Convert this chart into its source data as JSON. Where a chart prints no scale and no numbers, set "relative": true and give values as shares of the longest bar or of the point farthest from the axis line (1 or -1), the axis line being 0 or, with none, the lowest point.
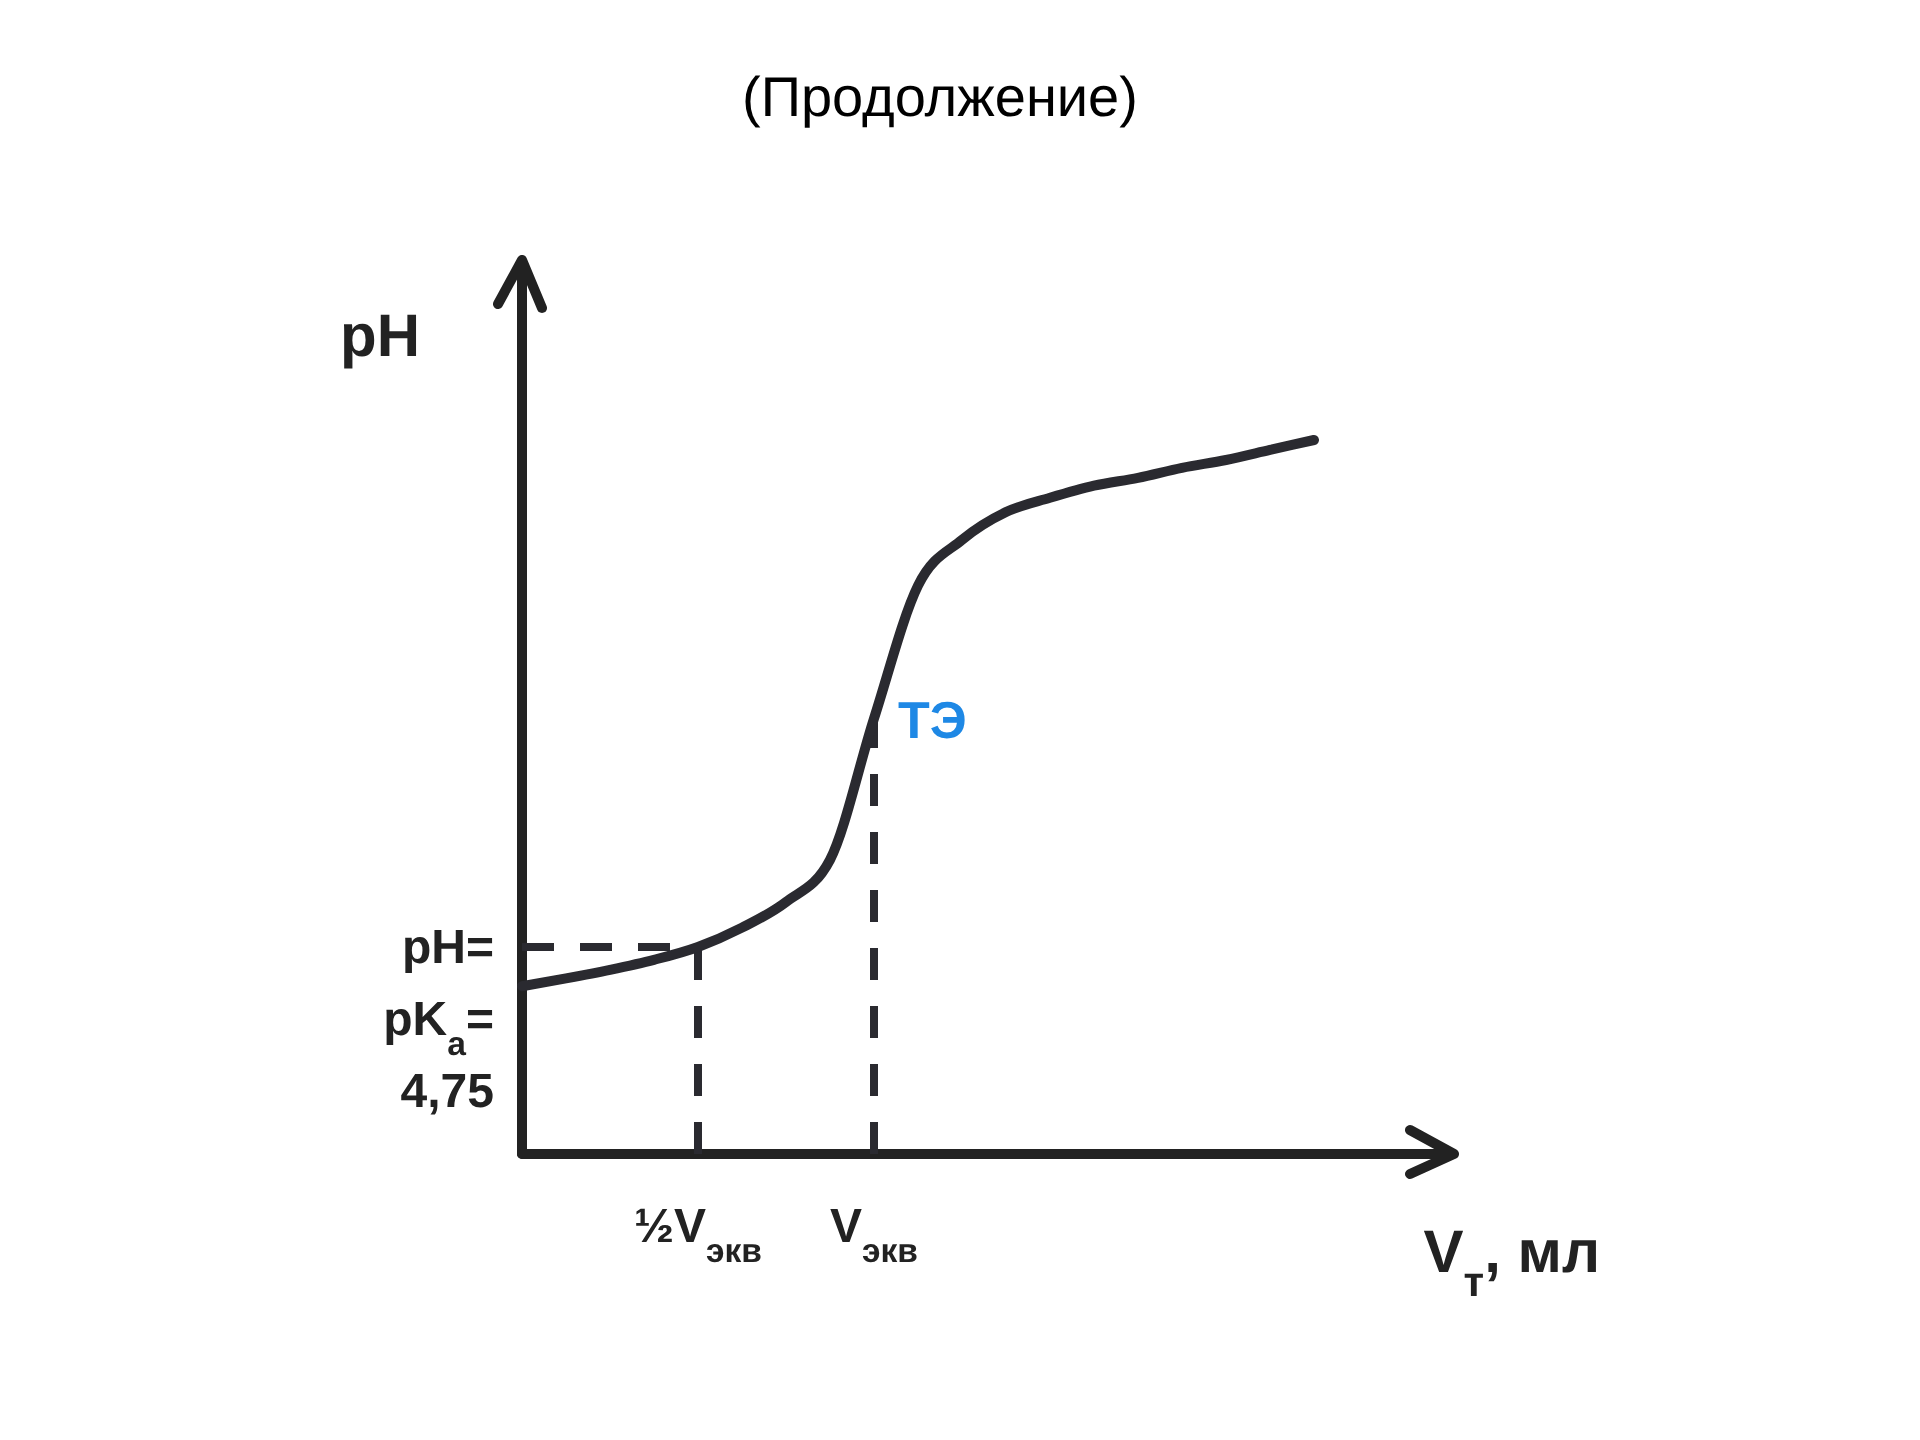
{
  "chart_data": {
    "type": "line",
    "title": "(Продолжение)",
    "xlabel": "V$_{т}$, мл",
    "ylabel": "pH",
    "relative": true,
    "categories": [
      null,
      null,
      null,
      null,
      "½V$_{экв}$",
      null,
      null,
      null,
      "V$_{экв}$",
      null,
      null,
      null,
      null,
      null,
      null,
      null,
      null,
      null,
      null
    ],
    "values": [
      0.235,
      0.246,
      0.258,
      0.272,
      0.29,
      0.317,
      0.353,
      0.412,
      0.61,
      0.796,
      0.86,
      0.899,
      0.919,
      0.936,
      0.947,
      0.961,
      0.972,
      0.986,
      1
    ],
    "color": "#2a2a30",
    "line_style": "solid",
    "ref_lines": [
      {
        "axis": "y",
        "value": 0.29,
        "line_style": "dashed"
      },
      {
        "axis": "x",
        "value": "½V$_{экв}$",
        "line_style": "dashed"
      },
      {
        "axis": "x",
        "value": "V$_{экв}$",
        "line_style": "dashed"
      }
    ],
    "annotations": [
      "pH=pK$_{a}$=4,75",
      {
        "text": "ТЭ",
        "x": "V$_{экв}$",
        "y": 0.61
      }
    ]
  }
}
